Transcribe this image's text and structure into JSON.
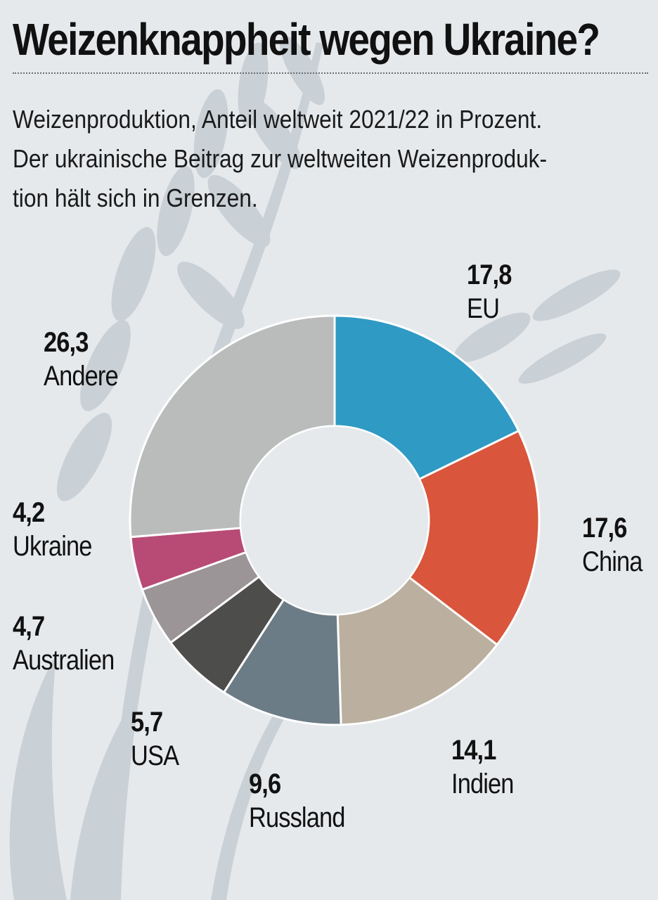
{
  "title": "Weizenknappheit wegen Ukraine?",
  "subtitle_lines": [
    "Weizenproduktion, Anteil weltweit 2021/22 in Prozent.",
    "Der ukrainische Beitrag zur weltweiten Weizenproduk-",
    "tion hält sich in Grenzen."
  ],
  "colors": {
    "background": "#e6e9ec",
    "wheat_decoration": "#c5ccd3",
    "separator": "#ffffff"
  },
  "chart_data": {
    "type": "pie",
    "variant": "donut",
    "title": "Weizenknappheit wegen Ukraine?",
    "subtitle": "Weizenproduktion, Anteil weltweit 2021/22 in Prozent.",
    "unit": "Prozent",
    "start": "top (12 o'clock), clockwise",
    "slices": [
      {
        "label": "EU",
        "value": 17.8,
        "display": "17,8",
        "color": "#2f9ac4"
      },
      {
        "label": "China",
        "value": 17.6,
        "display": "17,6",
        "color": "#d9553b"
      },
      {
        "label": "Indien",
        "value": 14.1,
        "display": "14,1",
        "color": "#bbaf9f"
      },
      {
        "label": "Russland",
        "value": 9.6,
        "display": "9,6",
        "color": "#6b7c86"
      },
      {
        "label": "USA",
        "value": 5.7,
        "display": "5,7",
        "color": "#4d4d4b"
      },
      {
        "label": "Australien",
        "value": 4.7,
        "display": "4,7",
        "color": "#9b9597"
      },
      {
        "label": "Ukraine",
        "value": 4.2,
        "display": "4,2",
        "color": "#b84a76"
      },
      {
        "label": "Andere",
        "value": 26.3,
        "display": "26,3",
        "color": "#b9bcbb"
      }
    ]
  }
}
